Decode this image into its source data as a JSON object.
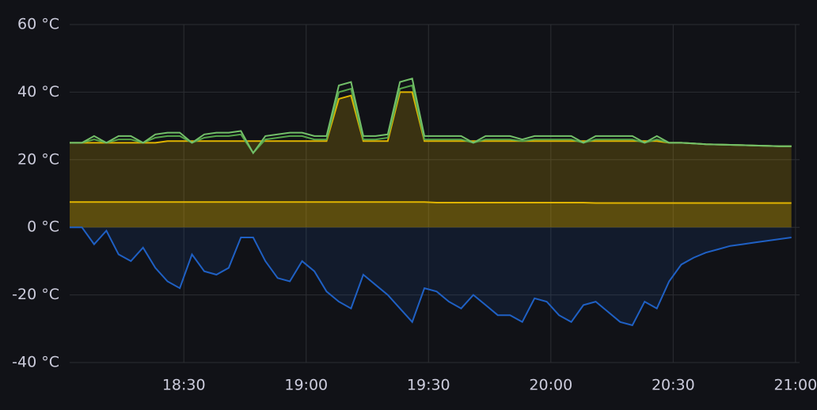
{
  "chart_data": {
    "type": "line",
    "x": [
      "18:02",
      "18:05",
      "18:08",
      "18:11",
      "18:14",
      "18:17",
      "18:20",
      "18:23",
      "18:26",
      "18:29",
      "18:32",
      "18:35",
      "18:38",
      "18:41",
      "18:44",
      "18:47",
      "18:50",
      "18:53",
      "18:56",
      "18:59",
      "19:02",
      "19:05",
      "19:08",
      "19:11",
      "19:14",
      "19:17",
      "19:20",
      "19:23",
      "19:26",
      "19:29",
      "19:32",
      "19:35",
      "19:38",
      "19:41",
      "19:44",
      "19:47",
      "19:50",
      "19:53",
      "19:56",
      "19:59",
      "20:02",
      "20:05",
      "20:08",
      "20:11",
      "20:14",
      "20:17",
      "20:20",
      "20:23",
      "20:26",
      "20:29",
      "20:32",
      "20:35",
      "20:38",
      "20:41",
      "20:44",
      "20:47",
      "20:50",
      "20:53",
      "20:56",
      "20:59"
    ],
    "series": [
      {
        "color": "#e0b400",
        "fill": true,
        "values": [
          7.5,
          7.5,
          7.5,
          7.5,
          7.5,
          7.5,
          7.5,
          7.5,
          7.5,
          7.5,
          7.5,
          7.5,
          7.5,
          7.5,
          7.5,
          7.5,
          7.5,
          7.5,
          7.5,
          7.5,
          7.5,
          7.5,
          7.5,
          7.5,
          7.5,
          7.5,
          7.5,
          7.5,
          7.5,
          7.5,
          7.3,
          7.3,
          7.3,
          7.3,
          7.3,
          7.3,
          7.3,
          7.3,
          7.3,
          7.3,
          7.3,
          7.3,
          7.3,
          7.2,
          7.2,
          7.2,
          7.2,
          7.2,
          7.2,
          7.2,
          7.2,
          7.2,
          7.2,
          7.2,
          7.2,
          7.2,
          7.2,
          7.2,
          7.2,
          7.2
        ]
      },
      {
        "color": "#e0b400",
        "fill": true,
        "values": [
          25,
          25,
          25,
          25,
          25,
          25,
          25,
          25,
          25.5,
          25.5,
          25.5,
          25.5,
          25.5,
          25.5,
          25.5,
          25.5,
          25.5,
          25.5,
          25.5,
          25.5,
          25.5,
          25.5,
          38,
          39,
          25.5,
          25.5,
          25.5,
          40,
          40,
          25.5,
          25.5,
          25.5,
          25.5,
          25.5,
          25.5,
          25.5,
          25.5,
          25.5,
          25.5,
          25.5,
          25.5,
          25.5,
          25.5,
          25.5,
          25.5,
          25.5,
          25.5,
          25.5,
          25.5,
          25,
          25,
          24.8,
          24.6,
          24.5,
          24.4,
          24.3,
          24.2,
          24.1,
          24,
          24
        ]
      },
      {
        "color": "#56a64b",
        "fill": false,
        "values": [
          25,
          25,
          26,
          25,
          26,
          26,
          25,
          26.5,
          27,
          27,
          25,
          26.5,
          27,
          27,
          27.5,
          22,
          26,
          26.5,
          27,
          27,
          26,
          26,
          40,
          41,
          26,
          26,
          26.5,
          41,
          42,
          26,
          26,
          26,
          26,
          25,
          26,
          26,
          26,
          25.5,
          26,
          26,
          26,
          26,
          25,
          26,
          26,
          26,
          26,
          25,
          26,
          25,
          25,
          24.8,
          24.6,
          24.5,
          24.4,
          24.3,
          24.2,
          24.1,
          24,
          24
        ]
      },
      {
        "color": "#73bf69",
        "fill": false,
        "values": [
          25,
          25,
          27,
          25,
          27,
          27,
          25,
          27.5,
          28,
          28,
          25,
          27.5,
          28,
          28,
          28.5,
          22,
          27,
          27.5,
          28,
          28,
          27,
          27,
          42,
          43,
          27,
          27,
          27.5,
          43,
          44,
          27,
          27,
          27,
          27,
          25,
          27,
          27,
          27,
          26,
          27,
          27,
          27,
          27,
          25,
          27,
          27,
          27,
          27,
          25,
          27,
          25,
          25,
          24.8,
          24.6,
          24.5,
          24.4,
          24.3,
          24.2,
          24.1,
          24,
          24
        ]
      },
      {
        "color": "#1f60c4",
        "fill": true,
        "values": [
          0,
          0,
          -5,
          -1,
          -8,
          -10,
          -6,
          -12,
          -16,
          -18,
          -8,
          -13,
          -14,
          -12,
          -3,
          -3,
          -10,
          -15,
          -16,
          -10,
          -13,
          -19,
          -22,
          -24,
          -14,
          -17,
          -20,
          -24,
          -28,
          -18,
          -19,
          -22,
          -24,
          -20,
          -23,
          -26,
          -26,
          -28,
          -21,
          -22,
          -26,
          -28,
          -23,
          -22,
          -25,
          -28,
          -29,
          -22,
          -24,
          -16,
          -11,
          -9,
          -7.5,
          -6.5,
          -5.5,
          -5,
          -4.5,
          -4,
          -3.5,
          -3
        ]
      }
    ],
    "xlim": [
      "18:02",
      "21:01"
    ],
    "xticks": [
      "18:30",
      "19:00",
      "19:30",
      "20:00",
      "20:30",
      "21:00"
    ],
    "ylim": [
      -40,
      60
    ],
    "yticks": [
      {
        "value": -40,
        "label": "-40 °C"
      },
      {
        "value": -20,
        "label": "-20 °C"
      },
      {
        "value": 0,
        "label": "0 °C"
      },
      {
        "value": 20,
        "label": "20 °C"
      },
      {
        "value": 40,
        "label": "40 °C"
      },
      {
        "value": 60,
        "label": "60 °C"
      }
    ],
    "grid": true
  }
}
